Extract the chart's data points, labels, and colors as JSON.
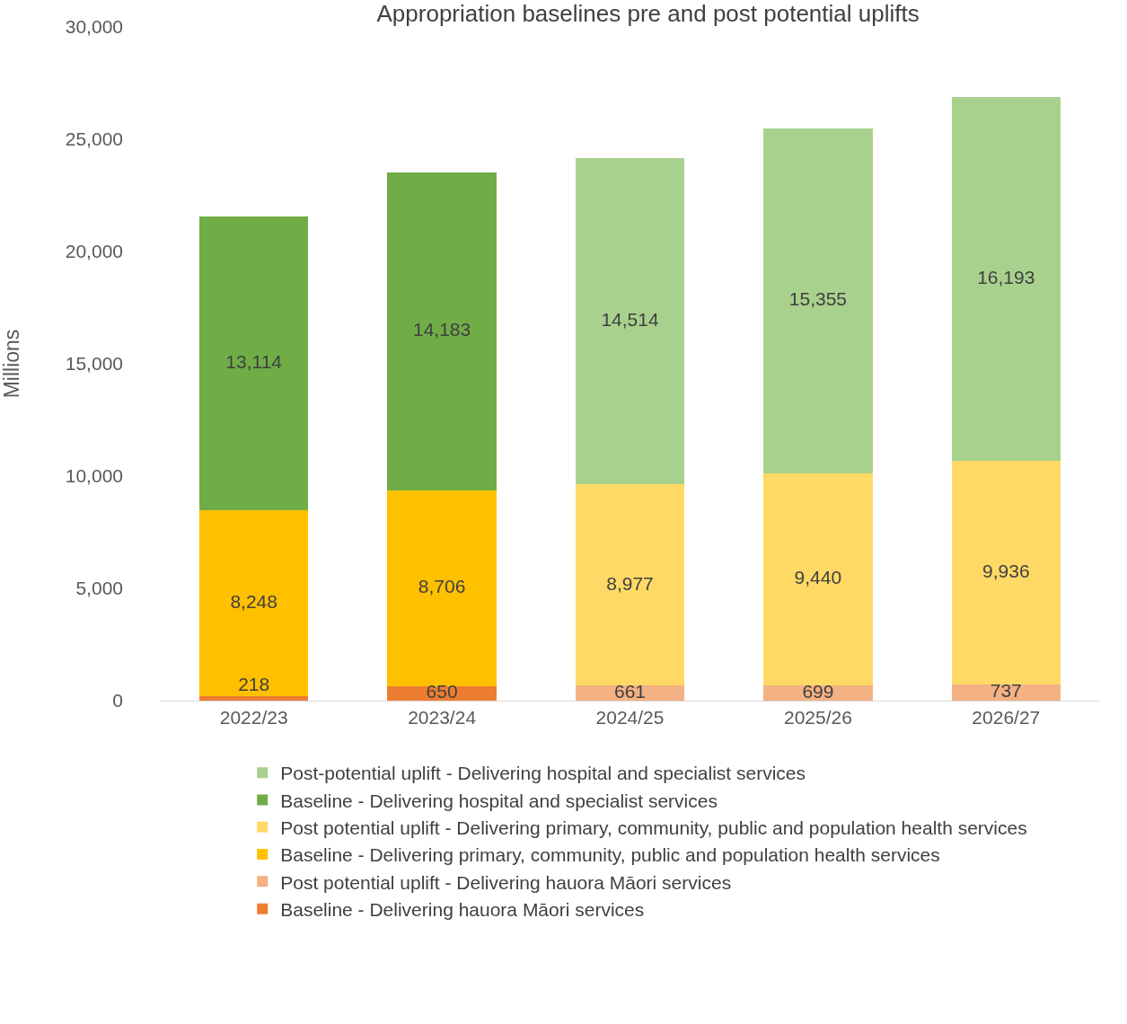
{
  "chart_data": {
    "type": "bar",
    "title": "Appropriation baselines pre and post potential uplifts",
    "ylabel": "Millions",
    "categories": [
      "2022/23",
      "2023/24",
      "2024/25",
      "2025/26",
      "2026/27"
    ],
    "stacked": true,
    "grid": false,
    "legend": "bottom",
    "ylim": [
      0,
      30000
    ],
    "yticks": [
      {
        "value": 0,
        "label": "0"
      },
      {
        "value": 5000,
        "label": "5,000"
      },
      {
        "value": 10000,
        "label": "10,000"
      },
      {
        "value": 15000,
        "label": "15,000"
      },
      {
        "value": 20000,
        "label": "20,000"
      },
      {
        "value": 25000,
        "label": "25,000"
      },
      {
        "value": 30000,
        "label": "30,000"
      }
    ],
    "series": [
      {
        "name": "Baseline - Delivering hauora Māori services",
        "color": "#ed7d31",
        "values": [
          218,
          650,
          null,
          null,
          null
        ],
        "value_labels": [
          "218",
          "650",
          null,
          null,
          null
        ]
      },
      {
        "name": "Post potential uplift - Delivering hauora Māori services",
        "color": "#f4b183",
        "values": [
          null,
          null,
          661,
          699,
          737
        ],
        "value_labels": [
          null,
          null,
          "661",
          "699",
          "737"
        ]
      },
      {
        "name": "Baseline - Delivering primary, community, public and population health services",
        "color": "#ffc000",
        "values": [
          8248,
          8706,
          null,
          null,
          null
        ],
        "value_labels": [
          "8,248",
          "8,706",
          null,
          null,
          null
        ]
      },
      {
        "name": "Post potential uplift - Delivering primary, community, public and population health services",
        "color": "#ffd966",
        "values": [
          null,
          null,
          8977,
          9440,
          9936
        ],
        "value_labels": [
          null,
          null,
          "8,977",
          "9,440",
          "9,936"
        ]
      },
      {
        "name": "Baseline - Delivering hospital and specialist services",
        "color": "#70ad47",
        "values": [
          13114,
          14183,
          null,
          null,
          null
        ],
        "value_labels": [
          "13,114",
          "14,183",
          null,
          null,
          null
        ]
      },
      {
        "name": "Post-potential uplift - Delivering hospital and specialist services",
        "color": "#a9d18e",
        "values": [
          null,
          null,
          14514,
          15355,
          16193
        ],
        "value_labels": [
          null,
          null,
          "14,514",
          "15,355",
          "16,193"
        ]
      }
    ]
  }
}
